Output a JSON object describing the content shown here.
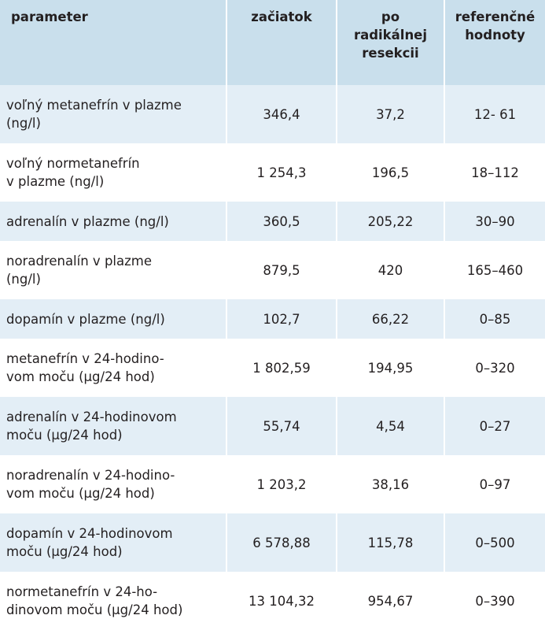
{
  "table": {
    "header": [
      [
        "parameter"
      ],
      [
        "začiatok"
      ],
      [
        "po",
        "radikálnej",
        "resekcii"
      ],
      [
        "referenčné",
        "hodnoty"
      ]
    ],
    "rows": [
      [
        [
          "voľný metanefrín v plazme",
          "(ng/l)"
        ],
        "346,4",
        "37,2",
        "12- 61"
      ],
      [
        [
          "voľný normetanefrín",
          "v plazme (ng/l)"
        ],
        "1 254,3",
        "196,5",
        "18–112"
      ],
      [
        [
          "adrenalín v plazme (ng/l)"
        ],
        "360,5",
        "205,22",
        "30–90"
      ],
      [
        [
          "noradrenalín v plazme",
          "(ng/l)"
        ],
        "879,5",
        "420",
        "165–460"
      ],
      [
        [
          "dopamín v plazme (ng/l)"
        ],
        "102,7",
        "66,22",
        "0–85"
      ],
      [
        [
          "metanefrín v 24-hodino-",
          "vom moču (µg/24 hod)"
        ],
        "1 802,59",
        "194,95",
        "0–320"
      ],
      [
        [
          "adrenalín v 24-hodinovom",
          "moču (µg/24 hod)"
        ],
        "55,74",
        "4,54",
        "0–27"
      ],
      [
        [
          "noradrenalín v 24-hodino-",
          "vom moču (µg/24 hod)"
        ],
        "1 203,2",
        "38,16",
        "0–97"
      ],
      [
        [
          "dopamín v 24-hodinovom",
          "moču (µg/24 hod)"
        ],
        "6 578,88",
        "115,78",
        "0–500"
      ],
      [
        [
          "normetanefrín v 24-ho-",
          "dinovom moču (µg/24 hod)"
        ],
        "13 104,32",
        "954,67",
        "0–390"
      ]
    ]
  }
}
